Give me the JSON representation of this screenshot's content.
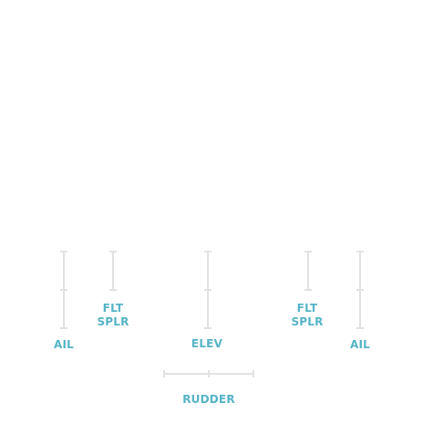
{
  "flight_controls": {
    "scale_color": "#e2e2e2",
    "label_color": "#56b4c8",
    "left_aileron": {
      "label": "AIL"
    },
    "left_flight_spoiler": {
      "label_line1": "FLT",
      "label_line2": "SPLR"
    },
    "elevator": {
      "label": "ELEV"
    },
    "right_flight_spoiler": {
      "label_line1": "FLT",
      "label_line2": "SPLR"
    },
    "right_aileron": {
      "label": "AIL"
    },
    "rudder": {
      "label": "RUDDER"
    }
  }
}
